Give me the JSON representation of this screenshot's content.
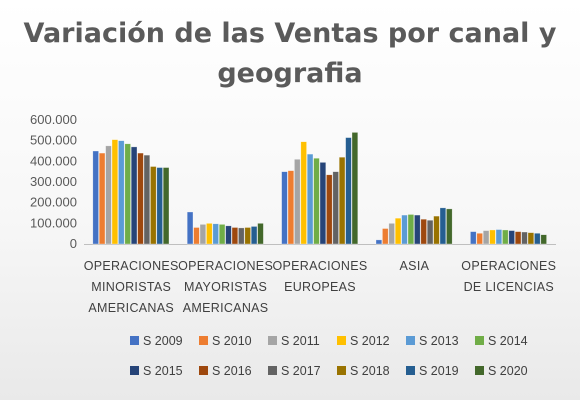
{
  "chart_data": {
    "type": "bar",
    "title_line1": "Variación de las Ventas por canal y",
    "title_line2": "geografia",
    "categories": [
      [
        "OPERACIONES",
        "MINORISTAS",
        "AMERICANAS"
      ],
      [
        "OPERACIONES",
        "MAYORISTAS",
        "AMERICANAS"
      ],
      [
        "OPERACIONES",
        "EUROPEAS"
      ],
      [
        "ASIA"
      ],
      [
        "OPERACIONES",
        "DE LICENCIAS"
      ]
    ],
    "yticks": [
      "0",
      "100.000",
      "200.000",
      "300.000",
      "400.000",
      "500.000",
      "600.000"
    ],
    "ylim": [
      0,
      600000
    ],
    "legend_position": "bottom",
    "series": [
      {
        "name": "S 2009",
        "color": "#4472C4",
        "values": [
          450000,
          155000,
          350000,
          20000,
          60000
        ]
      },
      {
        "name": "S 2010",
        "color": "#ED7D31",
        "values": [
          440000,
          80000,
          355000,
          75000,
          52000
        ]
      },
      {
        "name": "S 2011",
        "color": "#A5A5A5",
        "values": [
          475000,
          95000,
          410000,
          100000,
          65000
        ]
      },
      {
        "name": "S 2012",
        "color": "#FFC000",
        "values": [
          505000,
          100000,
          495000,
          125000,
          68000
        ]
      },
      {
        "name": "S 2013",
        "color": "#5B9BD5",
        "values": [
          500000,
          98000,
          435000,
          140000,
          70000
        ]
      },
      {
        "name": "S 2014",
        "color": "#70AD47",
        "values": [
          485000,
          95000,
          415000,
          143000,
          68000
        ]
      },
      {
        "name": "S 2015",
        "color": "#264478",
        "values": [
          470000,
          88000,
          395000,
          140000,
          65000
        ]
      },
      {
        "name": "S 2016",
        "color": "#9E480E",
        "values": [
          440000,
          80000,
          335000,
          120000,
          60000
        ]
      },
      {
        "name": "S 2017",
        "color": "#636363",
        "values": [
          430000,
          78000,
          350000,
          115000,
          58000
        ]
      },
      {
        "name": "S 2018",
        "color": "#997300",
        "values": [
          375000,
          80000,
          420000,
          135000,
          55000
        ]
      },
      {
        "name": "S 2019",
        "color": "#255E91",
        "values": [
          370000,
          85000,
          515000,
          175000,
          52000
        ]
      },
      {
        "name": "S 2020",
        "color": "#43682B",
        "values": [
          370000,
          100000,
          540000,
          170000,
          45000
        ]
      }
    ]
  }
}
